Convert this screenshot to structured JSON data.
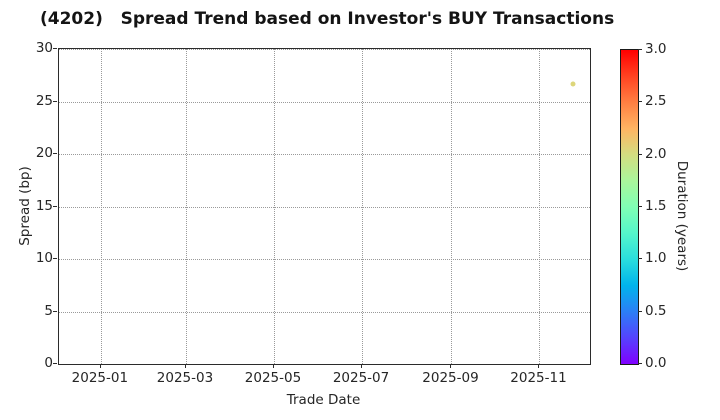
{
  "chart_data": {
    "type": "scatter",
    "title": "(4202)   Spread Trend based on Investor's BUY Transactions",
    "xlabel": "Trade Date",
    "ylabel": "Spread (bp)",
    "x_ticks": [
      {
        "label": "2025-01",
        "date": "2025-01-01"
      },
      {
        "label": "2025-03",
        "date": "2025-03-01"
      },
      {
        "label": "2025-05",
        "date": "2025-05-01"
      },
      {
        "label": "2025-07",
        "date": "2025-07-01"
      },
      {
        "label": "2025-09",
        "date": "2025-09-01"
      },
      {
        "label": "2025-11",
        "date": "2025-11-01"
      }
    ],
    "xlim": [
      "2024-12-03",
      "2025-12-06"
    ],
    "y_ticks": [
      0,
      5,
      10,
      15,
      20,
      25,
      30
    ],
    "ylim": [
      0,
      30
    ],
    "grid": {
      "visible": true,
      "style": "dotted"
    },
    "points": [
      {
        "date": "2025-11-25",
        "spread_bp": 26.6,
        "duration_years": 2.05
      }
    ],
    "colorbar": {
      "label": "Duration (years)",
      "min": 0.0,
      "max": 3.0,
      "tick_labels": [
        "0.0",
        "0.5",
        "1.0",
        "1.5",
        "2.0",
        "2.5",
        "3.0"
      ],
      "colormap": "rainbow"
    },
    "colors": {
      "title": "#141414",
      "axis_text": "#262626",
      "spine": "#2b2b2b",
      "grid": "#9a9a9a",
      "background": "#ffffff"
    }
  }
}
